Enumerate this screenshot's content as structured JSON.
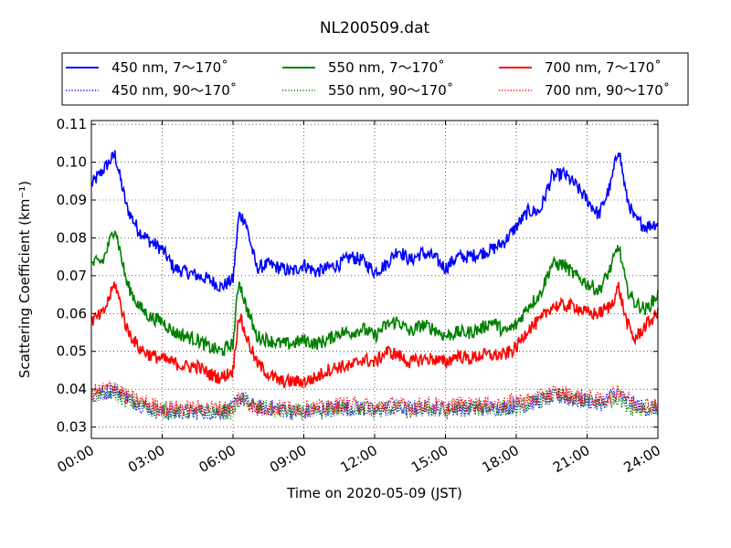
{
  "chart_data": {
    "type": "line",
    "title": "NL200509.dat",
    "xlabel": "Time on 2020-05-09 (JST)",
    "ylabel": "Scattering Coefficient (km⁻¹)",
    "xlim": [
      "00:00",
      "24:00"
    ],
    "ylim": [
      0.027,
      0.111
    ],
    "x_ticks": [
      "00:00",
      "03:00",
      "06:00",
      "09:00",
      "12:00",
      "15:00",
      "18:00",
      "21:00",
      "24:00"
    ],
    "y_ticks": [
      0.03,
      0.04,
      0.05,
      0.06,
      0.07,
      0.08,
      0.09,
      0.1,
      0.11
    ],
    "y_tick_labels": [
      "0.03",
      "0.04",
      "0.05",
      "0.06",
      "0.07",
      "0.08",
      "0.09",
      "0.10",
      "0.11"
    ],
    "grid": true,
    "legend_position": "top",
    "x": [
      "00:00",
      "00:30",
      "01:00",
      "01:30",
      "02:00",
      "02:30",
      "03:00",
      "03:30",
      "04:00",
      "04:30",
      "05:00",
      "05:30",
      "06:00",
      "06:15",
      "06:30",
      "07:00",
      "07:30",
      "08:00",
      "08:30",
      "09:00",
      "09:30",
      "10:00",
      "10:30",
      "11:00",
      "11:30",
      "12:00",
      "12:30",
      "13:00",
      "13:30",
      "14:00",
      "14:30",
      "15:00",
      "15:30",
      "16:00",
      "16:30",
      "17:00",
      "17:30",
      "18:00",
      "18:30",
      "19:00",
      "19:30",
      "20:00",
      "20:30",
      "21:00",
      "21:30",
      "22:00",
      "22:20",
      "22:40",
      "23:00",
      "23:30",
      "24:00"
    ],
    "series": [
      {
        "name": "450 nm, 7～170˚",
        "color": "#0000ff",
        "style": "solid",
        "values": [
          0.094,
          0.098,
          0.102,
          0.088,
          0.082,
          0.079,
          0.077,
          0.072,
          0.071,
          0.07,
          0.069,
          0.067,
          0.069,
          0.086,
          0.085,
          0.072,
          0.073,
          0.072,
          0.071,
          0.073,
          0.071,
          0.072,
          0.073,
          0.075,
          0.074,
          0.071,
          0.073,
          0.077,
          0.074,
          0.076,
          0.075,
          0.072,
          0.075,
          0.075,
          0.076,
          0.077,
          0.079,
          0.083,
          0.087,
          0.087,
          0.096,
          0.097,
          0.094,
          0.09,
          0.086,
          0.094,
          0.104,
          0.091,
          0.085,
          0.083,
          0.084
        ]
      },
      {
        "name": "450 nm, 90～170˚",
        "color": "#0000ff",
        "style": "dotted",
        "values": [
          0.038,
          0.039,
          0.04,
          0.038,
          0.036,
          0.035,
          0.034,
          0.034,
          0.034,
          0.034,
          0.034,
          0.034,
          0.035,
          0.038,
          0.037,
          0.035,
          0.035,
          0.035,
          0.034,
          0.034,
          0.034,
          0.035,
          0.035,
          0.035,
          0.035,
          0.034,
          0.035,
          0.035,
          0.035,
          0.035,
          0.035,
          0.035,
          0.035,
          0.035,
          0.035,
          0.035,
          0.035,
          0.036,
          0.036,
          0.037,
          0.038,
          0.038,
          0.037,
          0.037,
          0.036,
          0.038,
          0.039,
          0.037,
          0.036,
          0.035,
          0.035
        ]
      },
      {
        "name": "550 nm, 7～170˚",
        "color": "#008000",
        "style": "solid",
        "values": [
          0.073,
          0.074,
          0.083,
          0.068,
          0.062,
          0.059,
          0.058,
          0.055,
          0.054,
          0.053,
          0.051,
          0.05,
          0.052,
          0.069,
          0.063,
          0.054,
          0.053,
          0.052,
          0.052,
          0.053,
          0.052,
          0.053,
          0.055,
          0.055,
          0.056,
          0.054,
          0.057,
          0.058,
          0.055,
          0.057,
          0.056,
          0.054,
          0.055,
          0.055,
          0.056,
          0.058,
          0.055,
          0.057,
          0.062,
          0.065,
          0.073,
          0.073,
          0.07,
          0.068,
          0.066,
          0.072,
          0.078,
          0.067,
          0.063,
          0.061,
          0.065
        ]
      },
      {
        "name": "550 nm, 90～170˚",
        "color": "#008000",
        "style": "dotted",
        "values": [
          0.038,
          0.039,
          0.039,
          0.037,
          0.036,
          0.035,
          0.034,
          0.034,
          0.034,
          0.034,
          0.034,
          0.034,
          0.034,
          0.037,
          0.037,
          0.035,
          0.035,
          0.034,
          0.034,
          0.034,
          0.034,
          0.034,
          0.035,
          0.035,
          0.035,
          0.034,
          0.035,
          0.035,
          0.034,
          0.035,
          0.035,
          0.034,
          0.035,
          0.035,
          0.035,
          0.035,
          0.035,
          0.035,
          0.036,
          0.037,
          0.038,
          0.038,
          0.037,
          0.037,
          0.036,
          0.037,
          0.038,
          0.036,
          0.035,
          0.035,
          0.035
        ]
      },
      {
        "name": "700 nm, 7～170˚",
        "color": "#ff0000",
        "style": "solid",
        "values": [
          0.058,
          0.06,
          0.068,
          0.056,
          0.051,
          0.049,
          0.048,
          0.047,
          0.046,
          0.046,
          0.044,
          0.043,
          0.045,
          0.06,
          0.055,
          0.047,
          0.044,
          0.042,
          0.042,
          0.042,
          0.043,
          0.045,
          0.046,
          0.046,
          0.048,
          0.047,
          0.05,
          0.049,
          0.047,
          0.048,
          0.048,
          0.047,
          0.049,
          0.048,
          0.049,
          0.049,
          0.049,
          0.051,
          0.056,
          0.058,
          0.062,
          0.062,
          0.062,
          0.06,
          0.06,
          0.062,
          0.067,
          0.058,
          0.053,
          0.057,
          0.06
        ]
      },
      {
        "name": "700 nm, 90～170˚",
        "color": "#ff0000",
        "style": "dotted",
        "values": [
          0.039,
          0.04,
          0.041,
          0.038,
          0.037,
          0.036,
          0.035,
          0.035,
          0.035,
          0.035,
          0.035,
          0.035,
          0.035,
          0.038,
          0.037,
          0.035,
          0.035,
          0.035,
          0.035,
          0.035,
          0.035,
          0.035,
          0.036,
          0.036,
          0.036,
          0.035,
          0.036,
          0.036,
          0.035,
          0.036,
          0.036,
          0.035,
          0.036,
          0.036,
          0.036,
          0.036,
          0.036,
          0.037,
          0.037,
          0.038,
          0.039,
          0.039,
          0.038,
          0.038,
          0.037,
          0.038,
          0.04,
          0.038,
          0.036,
          0.036,
          0.036
        ]
      }
    ]
  }
}
